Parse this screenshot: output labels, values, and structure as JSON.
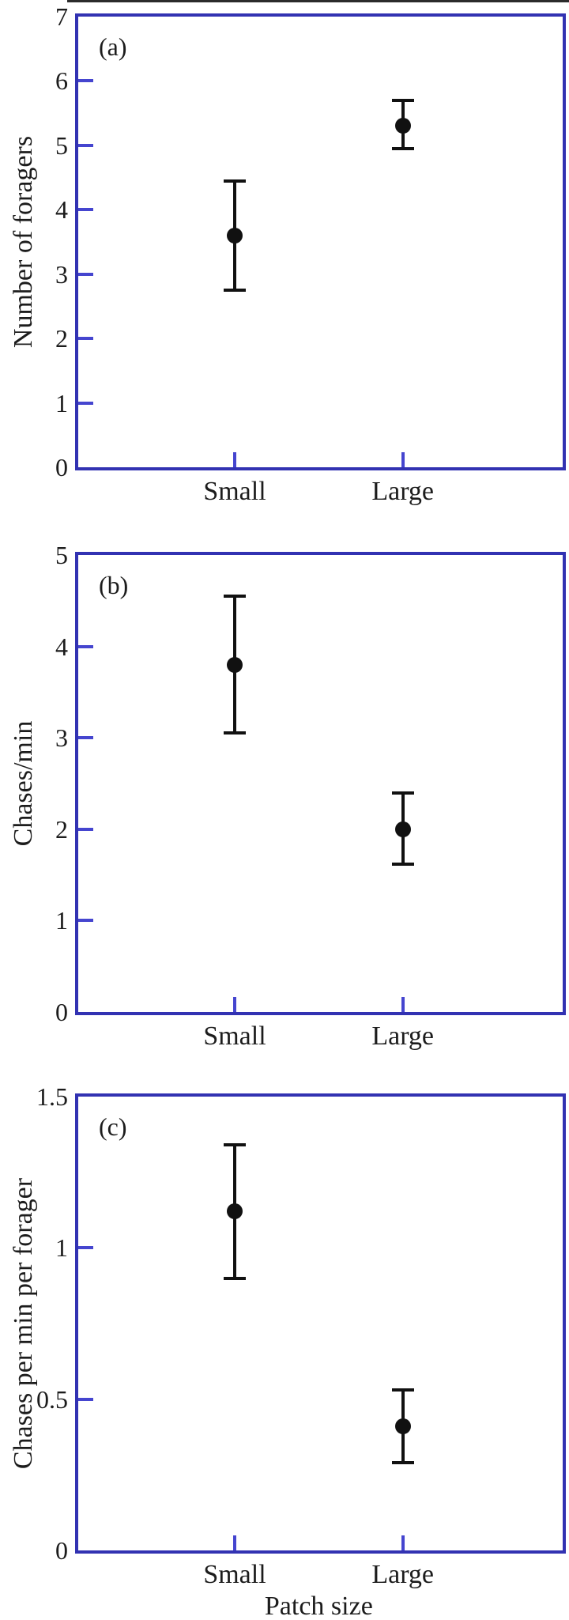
{
  "figure": {
    "xlabel": "Patch size",
    "frame_color": "#3232b2",
    "tick_color": "#4545cf",
    "marker_color": "#111111",
    "text_color": "#1c1c1c",
    "background_color": "#ffffff"
  },
  "chart_data": [
    {
      "type": "scatter",
      "panel_label": "(a)",
      "ylabel": "Number of foragers",
      "xlabel": "",
      "ylim": [
        0,
        7
      ],
      "ytick_labels": [
        "0",
        "1",
        "2",
        "3",
        "4",
        "5",
        "6",
        "7"
      ],
      "categories": [
        "Small",
        "Large"
      ],
      "points": [
        {
          "category": "Small",
          "value": 3.6,
          "err_low": 2.75,
          "err_high": 4.45
        },
        {
          "category": "Large",
          "value": 5.3,
          "err_low": 4.95,
          "err_high": 5.7
        }
      ],
      "legend": "none",
      "grid": "off"
    },
    {
      "type": "scatter",
      "panel_label": "(b)",
      "ylabel": "Chases/min",
      "xlabel": "",
      "ylim": [
        0,
        5
      ],
      "ytick_labels": [
        "0",
        "1",
        "2",
        "3",
        "4",
        "5"
      ],
      "categories": [
        "Small",
        "Large"
      ],
      "points": [
        {
          "category": "Small",
          "value": 3.8,
          "err_low": 3.05,
          "err_high": 4.55
        },
        {
          "category": "Large",
          "value": 2.0,
          "err_low": 1.62,
          "err_high": 2.4
        }
      ],
      "legend": "none",
      "grid": "off"
    },
    {
      "type": "scatter",
      "panel_label": "(c)",
      "ylabel": "Chases per min per forager",
      "xlabel": "Patch size",
      "ylim": [
        0,
        1.5
      ],
      "ytick_labels": [
        "0",
        "0.5",
        "1",
        "1.5"
      ],
      "categories": [
        "Small",
        "Large"
      ],
      "points": [
        {
          "category": "Small",
          "value": 1.12,
          "err_low": 0.9,
          "err_high": 1.34
        },
        {
          "category": "Large",
          "value": 0.41,
          "err_low": 0.29,
          "err_high": 0.53
        }
      ],
      "legend": "none",
      "grid": "off"
    }
  ]
}
